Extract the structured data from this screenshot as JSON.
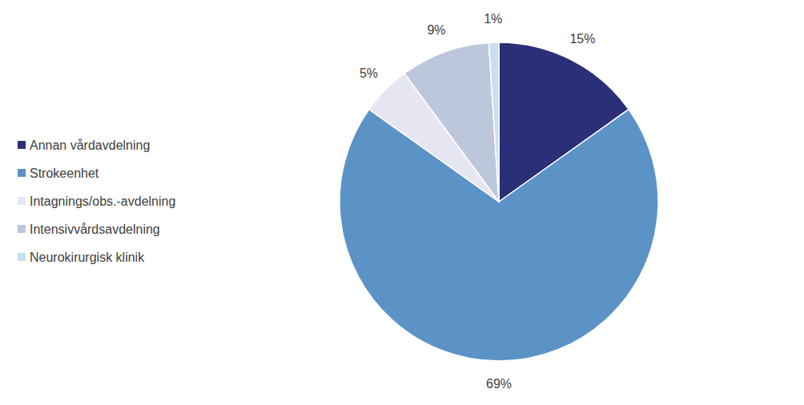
{
  "chart_data": {
    "type": "pie",
    "categories": [
      "Annan vårdavdelning",
      "Strokeenhet",
      "Intagnings/obs.-avdelning",
      "Intensivvårdsavdelning",
      "Neurokirurgisk klinik"
    ],
    "values": [
      15,
      69,
      5,
      9,
      1
    ],
    "value_labels": [
      "15%",
      "69%",
      "5%",
      "9%",
      "1%"
    ],
    "colors": [
      "#2b2f77",
      "#5b93c7",
      "#e6e6f2",
      "#bdc7dc",
      "#c9dff0"
    ],
    "data_labels": true,
    "legend": "left"
  }
}
